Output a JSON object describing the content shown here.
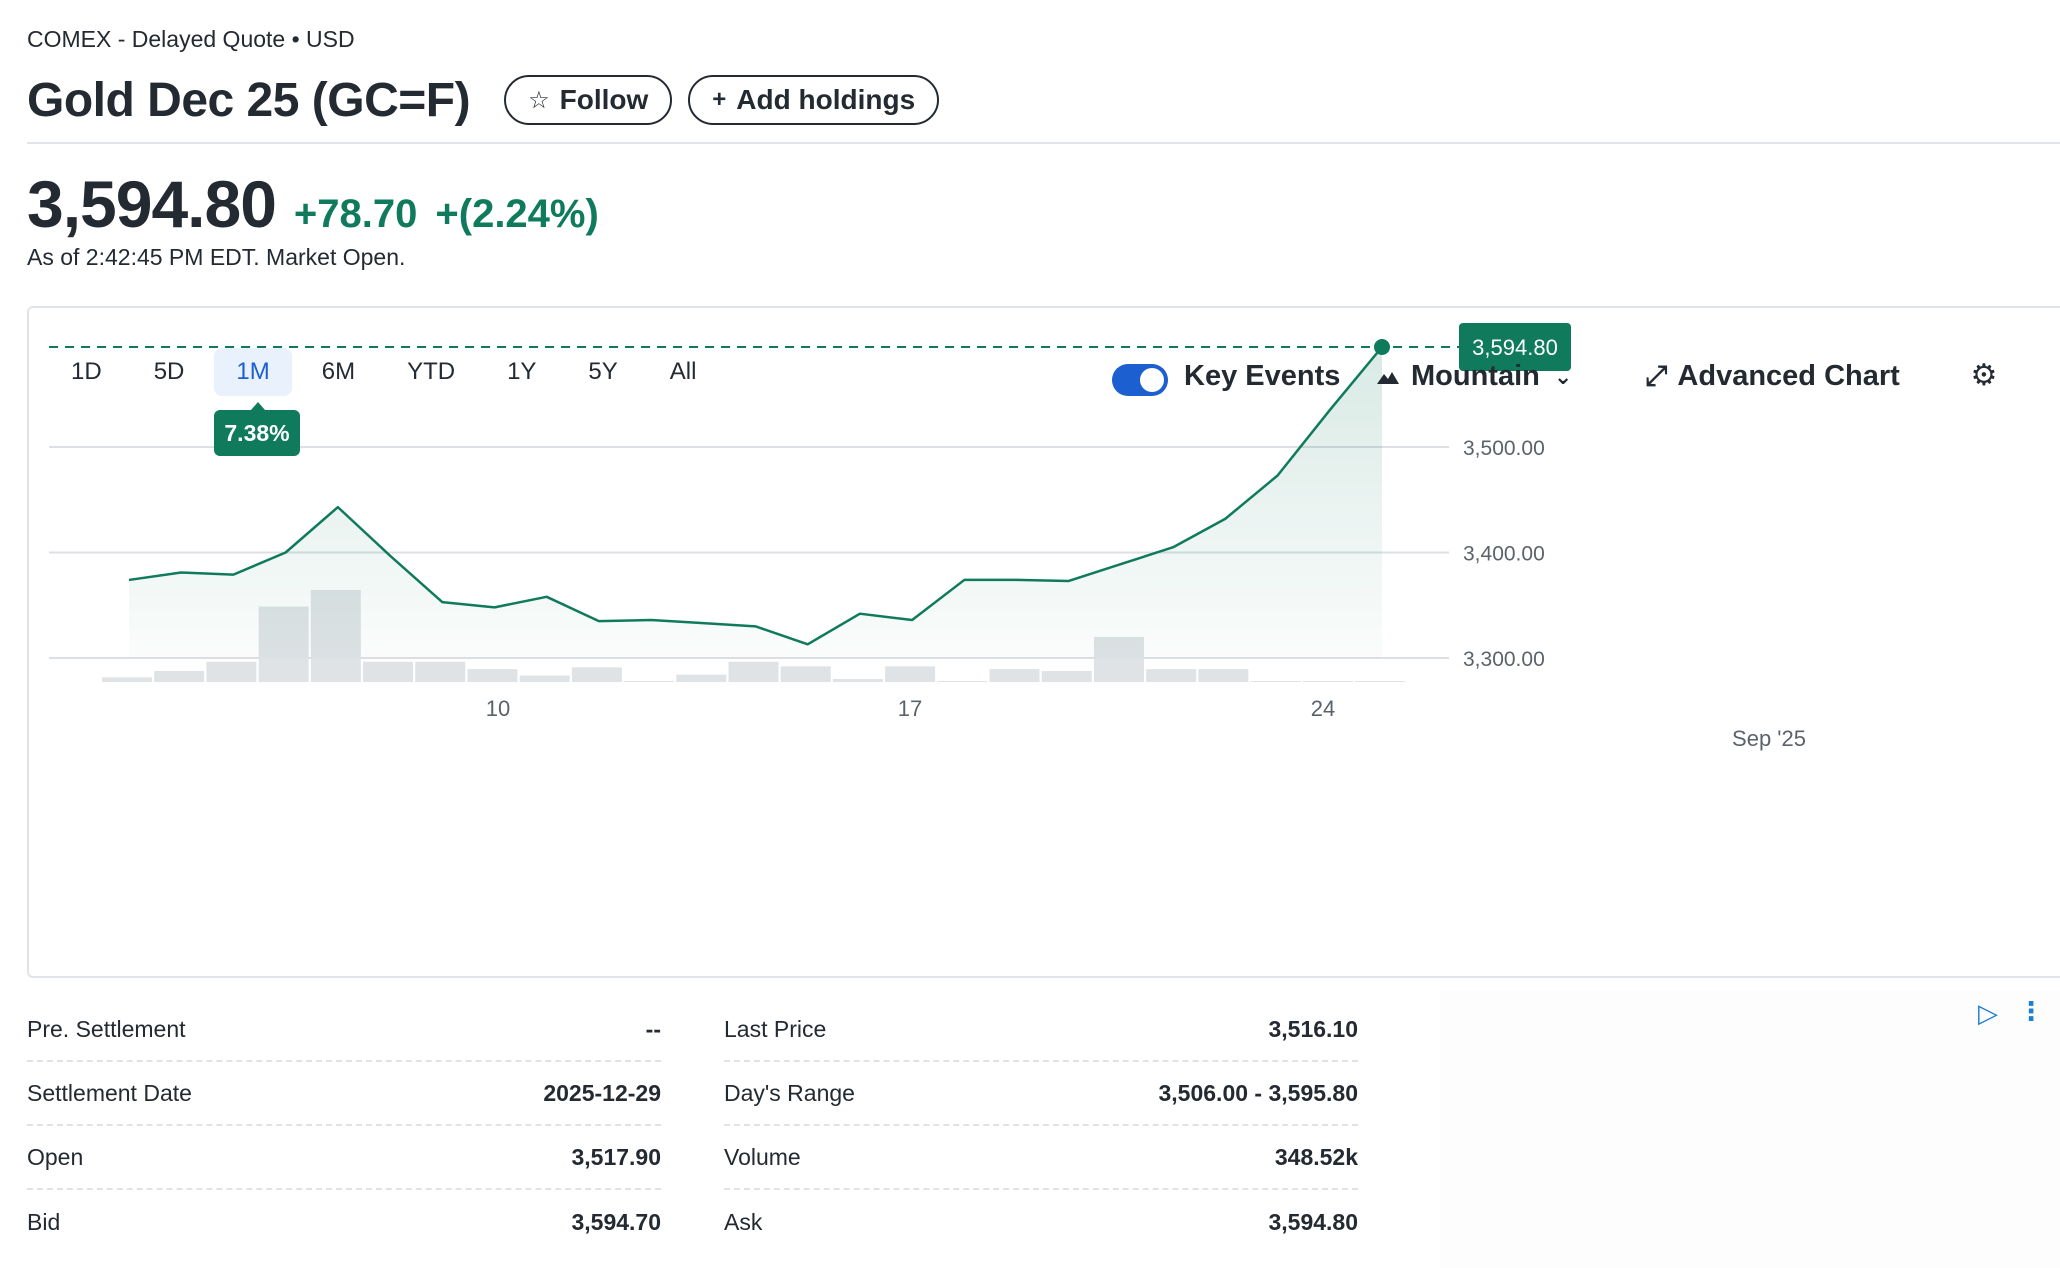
{
  "header": {
    "exchange": "COMEX - Delayed Quote • USD",
    "title": "Gold Dec 25 (GC=F)",
    "follow_label": "Follow",
    "add_holdings_label": "Add holdings"
  },
  "quote": {
    "price": "3,594.80",
    "change": "+78.70",
    "change_percent": "+(2.24%)",
    "as_of": "As of 2:42:45 PM EDT. Market Open."
  },
  "chart_toolbar": {
    "ranges": [
      "1D",
      "5D",
      "1M",
      "6M",
      "YTD",
      "1Y",
      "5Y",
      "All"
    ],
    "active_range": "1M",
    "range_change_badge": "7.38%",
    "key_events_label": "Key Events",
    "key_events_on": true,
    "chart_type_label": "Mountain",
    "advanced_chart_label": "Advanced Chart"
  },
  "colors": {
    "up": "#0f7b5c",
    "accent": "#1c5fd1",
    "volume": "#dfe3e6"
  },
  "icons": [
    "star-icon",
    "plus-icon",
    "mountain-icon",
    "chevron-down-icon",
    "expand-icon",
    "gear-icon",
    "ad-play-icon",
    "more-vertical-icon"
  ],
  "chart_data": {
    "type": "area",
    "x_tick_labels": [
      "10",
      "17",
      "24",
      "Sep '25"
    ],
    "y_tick_labels": [
      "3,300.00",
      "3,400.00",
      "3,500.00"
    ],
    "y_ticks": [
      3300,
      3400,
      3500
    ],
    "ylim": [
      3277,
      3612
    ],
    "current_price_label": "3,594.80",
    "current_price": 3594.8,
    "price": [
      3374,
      3381,
      3379,
      3400,
      3443,
      3397,
      3353,
      3348,
      3358,
      3335,
      3336,
      3333,
      3330,
      3313,
      3342,
      3336,
      3374,
      3374,
      3373,
      3389,
      3405,
      3432,
      3473,
      3535,
      3594.8
    ],
    "volume_relative": [
      0.05,
      0.12,
      0.22,
      0.82,
      1.0,
      0.22,
      0.22,
      0.14,
      0.07,
      0.16,
      0.0,
      0.08,
      0.22,
      0.17,
      0.01,
      0.17,
      0.0,
      0.14,
      0.12,
      0.49,
      0.14,
      0.14,
      0.0,
      0.0,
      0.0
    ],
    "grid": true
  },
  "stats": {
    "left": [
      {
        "label": "Pre. Settlement",
        "value": "--"
      },
      {
        "label": "Settlement Date",
        "value": "2025-12-29"
      },
      {
        "label": "Open",
        "value": "3,517.90"
      },
      {
        "label": "Bid",
        "value": "3,594.70"
      }
    ],
    "right": [
      {
        "label": "Last Price",
        "value": "3,516.10"
      },
      {
        "label": "Day's Range",
        "value": "3,506.00 - 3,595.80"
      },
      {
        "label": "Volume",
        "value": "348.52k"
      },
      {
        "label": "Ask",
        "value": "3,594.80"
      }
    ]
  }
}
